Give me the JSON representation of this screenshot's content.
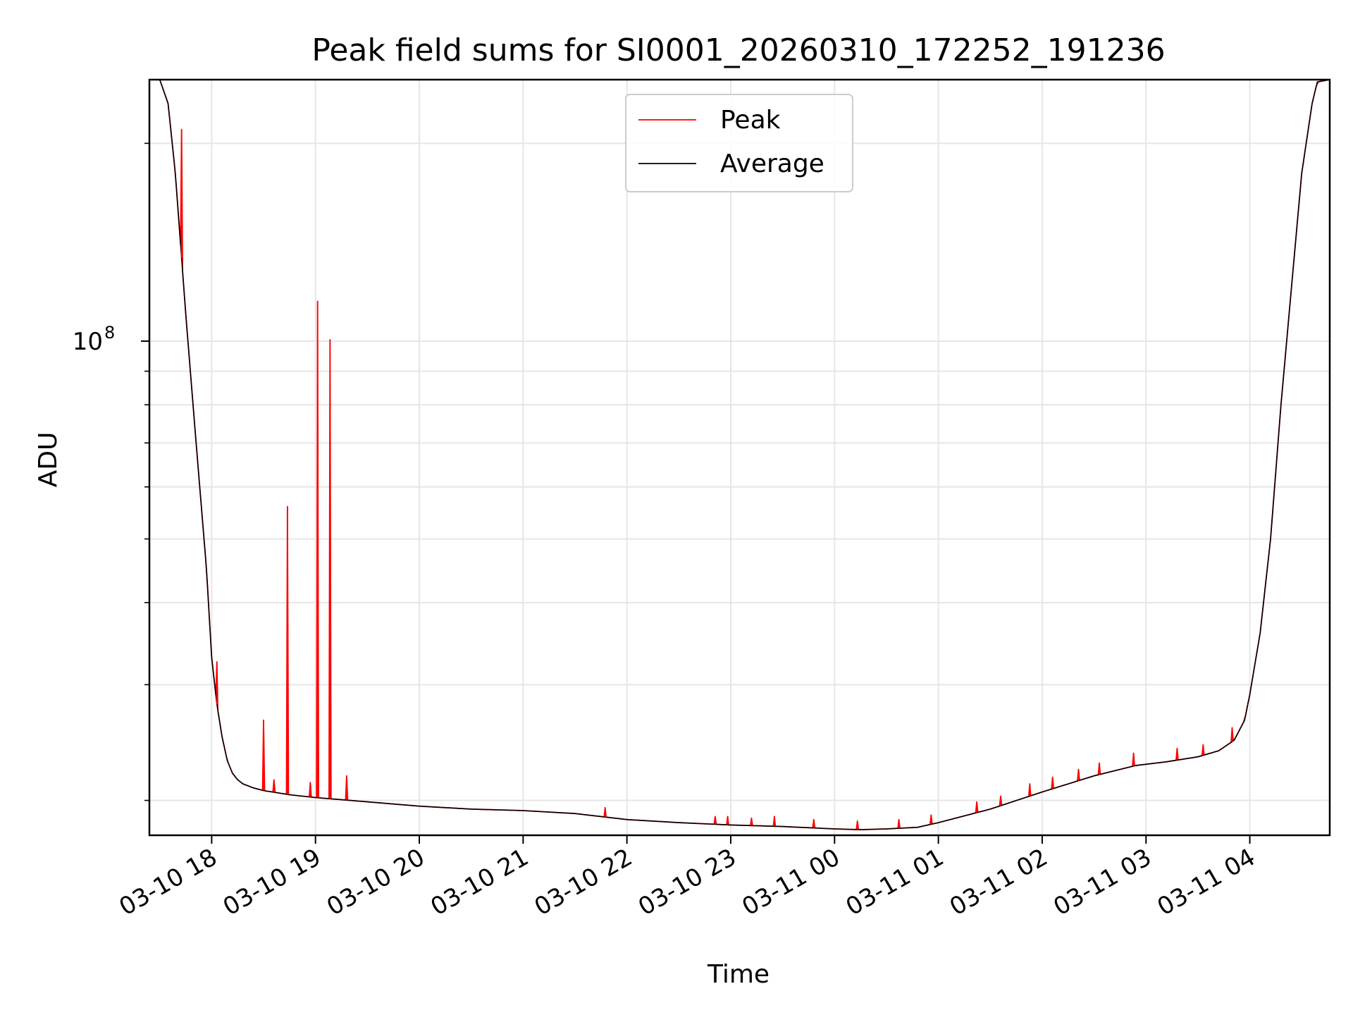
{
  "chart_data": {
    "type": "line",
    "title": "Peak field sums for SI0001_20260310_172252_191236",
    "xlabel": "Time",
    "ylabel": "ADU",
    "yscale": "log",
    "ylim": [
      17700000,
      250000000
    ],
    "xlim_hours": [
      17.4,
      28.77
    ],
    "grid": true,
    "legend_position": "upper center",
    "x_tick_labels": [
      "03-10 18",
      "03-10 19",
      "03-10 20",
      "03-10 21",
      "03-10 22",
      "03-10 23",
      "03-11 00",
      "03-11 01",
      "03-11 02",
      "03-11 03",
      "03-11 04"
    ],
    "x_tick_hours": [
      18,
      19,
      20,
      21,
      22,
      23,
      24,
      25,
      26,
      27,
      28
    ],
    "y_tick_label": {
      "base": "10",
      "exponent": "8"
    },
    "y_major_tick": 100000000,
    "y_minor_ticks": [
      20000000,
      30000000,
      40000000,
      50000000,
      60000000,
      70000000,
      80000000,
      90000000,
      200000000
    ],
    "series": [
      {
        "name": "Average",
        "color": "#000000",
        "x_hours": [
          17.4,
          17.5,
          17.58,
          17.65,
          17.75,
          17.85,
          17.95,
          18.0,
          18.05,
          18.1,
          18.15,
          18.2,
          18.25,
          18.3,
          18.4,
          18.5,
          18.75,
          19.0,
          19.5,
          20.0,
          20.5,
          21.0,
          21.5,
          22.0,
          22.5,
          23.0,
          23.5,
          24.0,
          24.25,
          24.5,
          24.8,
          25.0,
          25.5,
          26.0,
          26.5,
          26.9,
          27.2,
          27.5,
          27.7,
          27.85,
          27.95,
          28.0,
          28.1,
          28.2,
          28.3,
          28.4,
          28.5,
          28.6,
          28.65,
          28.77
        ],
        "values": [
          250000000,
          250000000,
          230000000,
          180000000,
          110000000,
          70000000,
          45000000,
          33000000,
          28000000,
          25000000,
          23000000,
          22000000,
          21500000,
          21200000,
          20900000,
          20700000,
          20400000,
          20200000,
          19900000,
          19600000,
          19400000,
          19300000,
          19100000,
          18700000,
          18500000,
          18350000,
          18250000,
          18100000,
          18050000,
          18100000,
          18200000,
          18500000,
          19400000,
          20600000,
          21800000,
          22600000,
          22900000,
          23300000,
          23800000,
          24700000,
          26500000,
          29000000,
          36000000,
          50000000,
          80000000,
          120000000,
          180000000,
          230000000,
          248000000,
          250000000
        ]
      },
      {
        "name": "Peak",
        "color": "#ff0000",
        "spikes": [
          {
            "x_hour": 17.71,
            "value": 210000000
          },
          {
            "x_hour": 18.05,
            "value": 32500000
          },
          {
            "x_hour": 18.5,
            "value": 26500000
          },
          {
            "x_hour": 18.6,
            "value": 21500000
          },
          {
            "x_hour": 18.73,
            "value": 56000000
          },
          {
            "x_hour": 18.95,
            "value": 21300000
          },
          {
            "x_hour": 19.02,
            "value": 115000000
          },
          {
            "x_hour": 19.14,
            "value": 100500000
          },
          {
            "x_hour": 19.3,
            "value": 21800000
          },
          {
            "x_hour": 21.79,
            "value": 19500000
          },
          {
            "x_hour": 22.85,
            "value": 18900000
          },
          {
            "x_hour": 22.97,
            "value": 18900000
          },
          {
            "x_hour": 23.2,
            "value": 18800000
          },
          {
            "x_hour": 23.42,
            "value": 18900000
          },
          {
            "x_hour": 23.8,
            "value": 18700000
          },
          {
            "x_hour": 24.22,
            "value": 18600000
          },
          {
            "x_hour": 24.62,
            "value": 18700000
          },
          {
            "x_hour": 24.93,
            "value": 19000000
          },
          {
            "x_hour": 25.37,
            "value": 19900000
          },
          {
            "x_hour": 25.6,
            "value": 20300000
          },
          {
            "x_hour": 25.88,
            "value": 21200000
          },
          {
            "x_hour": 26.1,
            "value": 21700000
          },
          {
            "x_hour": 26.35,
            "value": 22300000
          },
          {
            "x_hour": 26.55,
            "value": 22800000
          },
          {
            "x_hour": 26.88,
            "value": 23600000
          },
          {
            "x_hour": 27.3,
            "value": 24000000
          },
          {
            "x_hour": 27.55,
            "value": 24300000
          },
          {
            "x_hour": 27.83,
            "value": 25800000
          },
          {
            "x_hour": 27.98,
            "value": 28000000
          }
        ]
      }
    ]
  }
}
